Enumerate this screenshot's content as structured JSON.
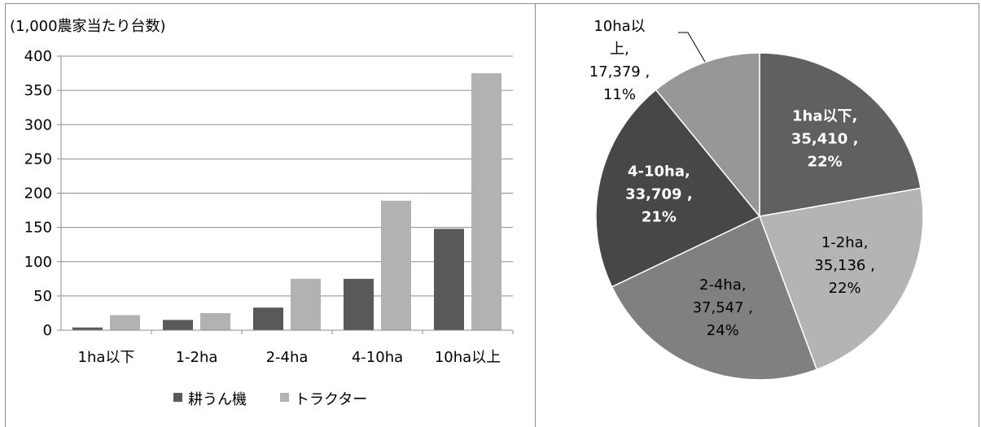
{
  "chart_data": [
    {
      "type": "bar",
      "title": "",
      "ylabel": "(1,000農家当たり台数)",
      "xlabel": "",
      "categories": [
        "1ha以下",
        "1-2ha",
        "2-4ha",
        "4-10ha",
        "10ha以上"
      ],
      "series": [
        {
          "name": "耕うん機",
          "values": [
            4,
            15,
            33,
            75,
            148
          ]
        },
        {
          "name": "トラクター",
          "values": [
            22,
            25,
            75,
            189,
            375
          ]
        }
      ],
      "ylim": [
        0,
        400
      ],
      "yticks": [
        "0",
        "50",
        "100",
        "150",
        "200",
        "250",
        "300",
        "350",
        "400"
      ],
      "grid": true,
      "legend": "bottom",
      "colors": [
        "#595959",
        "#b2b2b2"
      ]
    },
    {
      "type": "pie",
      "title": "",
      "slices": [
        {
          "label": "1ha以下,",
          "value": 35410,
          "value_text": "35,410 ,",
          "percent": "22%",
          "color": "#606060"
        },
        {
          "label": "1-2ha,",
          "value": 35136,
          "value_text": "35,136 ,",
          "percent": "22%",
          "color": "#b4b4b4"
        },
        {
          "label": "2-4ha,",
          "value": 37547,
          "value_text": "37,547 ,",
          "percent": "24%",
          "color": "#808080"
        },
        {
          "label": "4-10ha,",
          "value": 33709,
          "value_text": "33,709 ,",
          "percent": "21%",
          "color": "#474747"
        },
        {
          "label": "10ha以上,",
          "value": 17379,
          "value_text": "17,379 ,",
          "percent": "11%",
          "color": "#979797"
        }
      ],
      "outside_label_lines": [
        "10ha以",
        "上,",
        "17,379 ,",
        "11%"
      ]
    }
  ]
}
